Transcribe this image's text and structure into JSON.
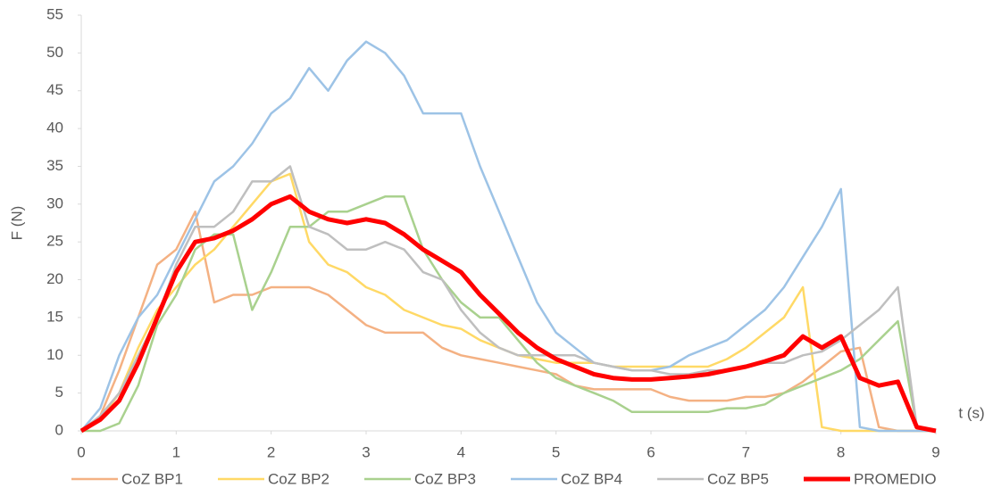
{
  "chart_data": {
    "type": "line",
    "ylabel": "F (N)",
    "xlabel": "t (s)",
    "xlim": [
      0,
      9
    ],
    "xticks": [
      0,
      1,
      2,
      3,
      4,
      5,
      6,
      7,
      8,
      9
    ],
    "ylim": [
      0,
      55
    ],
    "yticks": [
      0,
      5,
      10,
      15,
      20,
      25,
      30,
      35,
      40,
      45,
      50,
      55
    ],
    "grid": false,
    "legend": "bottom",
    "x": [
      0,
      0.2,
      0.4,
      0.6,
      0.8,
      1.0,
      1.2,
      1.4,
      1.6,
      1.8,
      2.0,
      2.2,
      2.4,
      2.6,
      2.8,
      3.0,
      3.2,
      3.4,
      3.6,
      3.8,
      4.0,
      4.2,
      4.4,
      4.6,
      4.8,
      5.0,
      5.2,
      5.4,
      5.6,
      5.8,
      6.0,
      6.2,
      6.4,
      6.6,
      6.8,
      7.0,
      7.2,
      7.4,
      7.6,
      7.8,
      8.0,
      8.2,
      8.4,
      8.6,
      8.8,
      9.0
    ],
    "series": [
      {
        "name": "CoZ BP1",
        "color": "#f4b183",
        "width": 2.5,
        "values": [
          0,
          2,
          8,
          15,
          22,
          24,
          29,
          17,
          18,
          18,
          19,
          19,
          19,
          18,
          16,
          14,
          13,
          13,
          13,
          11,
          10,
          9.5,
          9,
          8.5,
          8,
          7.5,
          6,
          5.5,
          5.5,
          5.5,
          5.5,
          4.5,
          4,
          4,
          4,
          4.5,
          4.5,
          5,
          6.5,
          8.5,
          10.5,
          11,
          0.5,
          0,
          0,
          0
        ]
      },
      {
        "name": "CoZ BP2",
        "color": "#ffd966",
        "width": 2.5,
        "values": [
          0,
          1.5,
          5,
          11,
          16,
          19,
          22,
          24,
          27,
          30,
          33,
          34,
          25,
          22,
          21,
          19,
          18,
          16,
          15,
          14,
          13.5,
          12,
          11,
          10,
          9.5,
          9,
          9,
          9,
          8.5,
          8.5,
          8.5,
          8.5,
          8.5,
          8.5,
          9.5,
          11,
          13,
          15,
          19,
          0.5,
          0,
          0,
          0,
          0,
          0,
          0
        ]
      },
      {
        "name": "CoZ BP3",
        "color": "#a9d18e",
        "width": 2.5,
        "values": [
          0,
          0,
          1,
          6,
          14,
          18,
          24,
          26,
          26,
          16,
          21,
          27,
          27,
          29,
          29,
          30,
          31,
          31,
          24,
          20,
          17,
          15,
          15,
          12,
          9,
          7,
          6,
          5,
          4,
          2.5,
          2.5,
          2.5,
          2.5,
          2.5,
          3,
          3,
          3.5,
          5,
          6,
          7,
          8,
          9.5,
          12,
          14.5,
          0.5,
          0
        ]
      },
      {
        "name": "CoZ BP4",
        "color": "#9dc3e6",
        "width": 2.5,
        "values": [
          0,
          3,
          10,
          15,
          18,
          23,
          28,
          33,
          35,
          38,
          42,
          44,
          48,
          45,
          49,
          51.5,
          50,
          47,
          42,
          42,
          42,
          35,
          29,
          23,
          17,
          13,
          11,
          9,
          8.5,
          8,
          8,
          8.5,
          10,
          11,
          12,
          14,
          16,
          19,
          23,
          27,
          32,
          0.5,
          0,
          0,
          0,
          0
        ]
      },
      {
        "name": "CoZ BP5",
        "color": "#bfbfbf",
        "width": 2.5,
        "values": [
          0,
          2,
          5,
          10,
          15,
          22,
          27,
          27,
          29,
          33,
          33,
          35,
          27,
          26,
          24,
          24,
          25,
          24,
          21,
          20,
          16,
          13,
          11,
          10,
          10,
          10,
          10,
          9,
          8.5,
          8,
          8,
          7.5,
          7.5,
          8,
          8,
          8.5,
          9,
          9,
          10,
          10.5,
          12,
          14,
          16,
          19,
          0.5,
          0
        ]
      },
      {
        "name": "PROMEDIO",
        "color": "#ff0000",
        "width": 5,
        "values": [
          0,
          1.5,
          4,
          9,
          15,
          21,
          25,
          25.5,
          26.5,
          28,
          30,
          31,
          29,
          28,
          27.5,
          28,
          27.5,
          26,
          24,
          22.5,
          21,
          18,
          15.5,
          13,
          11,
          9.5,
          8.5,
          7.5,
          7,
          6.8,
          6.8,
          7,
          7.2,
          7.5,
          8,
          8.5,
          9.2,
          10,
          12.5,
          11,
          12.5,
          7,
          6,
          6.5,
          0.5,
          0
        ]
      }
    ]
  }
}
